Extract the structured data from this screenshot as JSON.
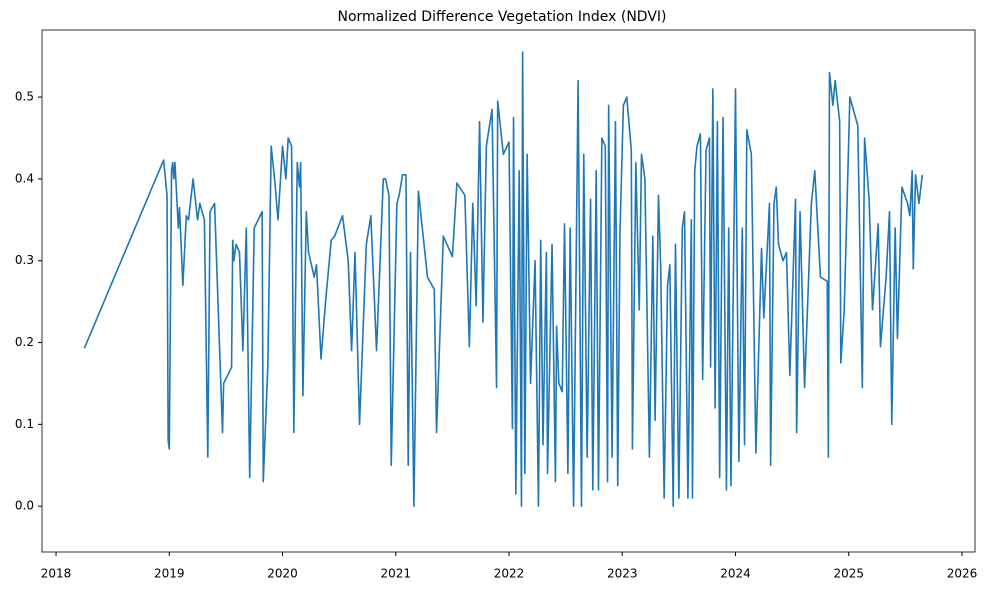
{
  "chart_data": {
    "type": "line",
    "title": "Normalized Difference Vegetation Index (NDVI)",
    "x": [
      2018.25,
      2018.95,
      2018.98,
      2018.99,
      2019.0,
      2019.02,
      2019.03,
      2019.04,
      2019.05,
      2019.08,
      2019.09,
      2019.12,
      2019.15,
      2019.17,
      2019.21,
      2019.25,
      2019.27,
      2019.31,
      2019.34,
      2019.36,
      2019.4,
      2019.47,
      2019.48,
      2019.55,
      2019.56,
      2019.57,
      2019.59,
      2019.62,
      2019.65,
      2019.68,
      2019.71,
      2019.75,
      2019.82,
      2019.83,
      2019.87,
      2019.9,
      2019.93,
      2019.96,
      2020.0,
      2020.03,
      2020.05,
      2020.08,
      2020.1,
      2020.13,
      2020.15,
      2020.16,
      2020.18,
      2020.21,
      2020.23,
      2020.28,
      2020.3,
      2020.34,
      2020.38,
      2020.43,
      2020.46,
      2020.53,
      2020.58,
      2020.61,
      2020.64,
      2020.68,
      2020.74,
      2020.78,
      2020.83,
      2020.89,
      2020.91,
      2020.94,
      2020.96,
      2021.01,
      2021.03,
      2021.06,
      2021.09,
      2021.11,
      2021.13,
      2021.16,
      2021.2,
      2021.28,
      2021.34,
      2021.36,
      2021.42,
      2021.5,
      2021.54,
      2021.61,
      2021.65,
      2021.68,
      2021.71,
      2021.74,
      2021.77,
      2021.8,
      2021.85,
      2021.89,
      2021.9,
      2021.95,
      2022.0,
      2022.03,
      2022.04,
      2022.06,
      2022.09,
      2022.11,
      2022.12,
      2022.14,
      2022.16,
      2022.19,
      2022.23,
      2022.26,
      2022.28,
      2022.3,
      2022.33,
      2022.34,
      2022.38,
      2022.41,
      2022.42,
      2022.44,
      2022.47,
      2022.49,
      2022.52,
      2022.54,
      2022.57,
      2022.61,
      2022.64,
      2022.66,
      2022.69,
      2022.72,
      2022.74,
      2022.77,
      2022.79,
      2022.82,
      2022.85,
      2022.87,
      2022.88,
      2022.91,
      2022.94,
      2022.96,
      2022.98,
      2023.01,
      2023.04,
      2023.08,
      2023.09,
      2023.12,
      2023.15,
      2023.17,
      2023.2,
      2023.24,
      2023.27,
      2023.29,
      2023.32,
      2023.34,
      2023.37,
      2023.4,
      2023.42,
      2023.45,
      2023.47,
      2023.5,
      2023.53,
      2023.55,
      2023.58,
      2023.61,
      2023.62,
      2023.64,
      2023.66,
      2023.69,
      2023.71,
      2023.74,
      2023.77,
      2023.78,
      2023.8,
      2023.82,
      2023.84,
      2023.86,
      2023.89,
      2023.92,
      2023.94,
      2023.96,
      2023.99,
      2024.0,
      2024.03,
      2024.06,
      2024.08,
      2024.1,
      2024.14,
      2024.18,
      2024.23,
      2024.25,
      2024.3,
      2024.31,
      2024.34,
      2024.36,
      2024.38,
      2024.42,
      2024.45,
      2024.48,
      2024.53,
      2024.54,
      2024.57,
      2024.61,
      2024.67,
      2024.7,
      2024.75,
      2024.81,
      2024.82,
      2024.83,
      2024.86,
      2024.88,
      2024.92,
      2024.93,
      2024.96,
      2025.01,
      2025.08,
      2025.12,
      2025.14,
      2025.18,
      2025.21,
      2025.26,
      2025.28,
      2025.33,
      2025.36,
      2025.38,
      2025.41,
      2025.43,
      2025.47,
      2025.52,
      2025.54,
      2025.56,
      2025.57,
      2025.59,
      2025.62,
      2025.65
    ],
    "series": [
      {
        "name": "NDVI",
        "color": "#1f77b4",
        "values": [
          0.193,
          0.423,
          0.38,
          0.08,
          0.07,
          0.41,
          0.42,
          0.4,
          0.42,
          0.34,
          0.365,
          0.27,
          0.355,
          0.35,
          0.4,
          0.35,
          0.37,
          0.35,
          0.06,
          0.36,
          0.37,
          0.09,
          0.15,
          0.17,
          0.325,
          0.3,
          0.32,
          0.31,
          0.19,
          0.34,
          0.035,
          0.34,
          0.36,
          0.03,
          0.17,
          0.44,
          0.4,
          0.35,
          0.44,
          0.4,
          0.45,
          0.44,
          0.09,
          0.42,
          0.39,
          0.42,
          0.135,
          0.36,
          0.31,
          0.28,
          0.295,
          0.18,
          0.25,
          0.325,
          0.33,
          0.355,
          0.3,
          0.19,
          0.31,
          0.1,
          0.32,
          0.355,
          0.19,
          0.4,
          0.4,
          0.38,
          0.05,
          0.37,
          0.38,
          0.405,
          0.405,
          0.05,
          0.31,
          0.0,
          0.385,
          0.28,
          0.265,
          0.09,
          0.33,
          0.305,
          0.395,
          0.38,
          0.195,
          0.37,
          0.245,
          0.47,
          0.225,
          0.44,
          0.485,
          0.145,
          0.495,
          0.43,
          0.445,
          0.095,
          0.475,
          0.015,
          0.41,
          0.0,
          0.555,
          0.04,
          0.43,
          0.15,
          0.3,
          0.0,
          0.325,
          0.075,
          0.31,
          0.04,
          0.32,
          0.03,
          0.22,
          0.15,
          0.14,
          0.345,
          0.04,
          0.34,
          0.0,
          0.52,
          0.0,
          0.43,
          0.06,
          0.375,
          0.02,
          0.41,
          0.02,
          0.45,
          0.44,
          0.03,
          0.49,
          0.06,
          0.47,
          0.025,
          0.335,
          0.49,
          0.5,
          0.435,
          0.07,
          0.42,
          0.24,
          0.43,
          0.4,
          0.06,
          0.33,
          0.105,
          0.38,
          0.29,
          0.01,
          0.27,
          0.295,
          0.0,
          0.32,
          0.01,
          0.34,
          0.36,
          0.01,
          0.35,
          0.01,
          0.41,
          0.44,
          0.455,
          0.155,
          0.435,
          0.45,
          0.17,
          0.51,
          0.12,
          0.47,
          0.035,
          0.475,
          0.02,
          0.34,
          0.025,
          0.38,
          0.51,
          0.055,
          0.34,
          0.075,
          0.46,
          0.43,
          0.065,
          0.315,
          0.23,
          0.37,
          0.05,
          0.37,
          0.39,
          0.32,
          0.3,
          0.31,
          0.16,
          0.375,
          0.09,
          0.36,
          0.145,
          0.37,
          0.41,
          0.28,
          0.275,
          0.06,
          0.53,
          0.49,
          0.52,
          0.47,
          0.175,
          0.24,
          0.5,
          0.465,
          0.145,
          0.45,
          0.375,
          0.24,
          0.345,
          0.195,
          0.28,
          0.36,
          0.1,
          0.34,
          0.205,
          0.39,
          0.37,
          0.355,
          0.41,
          0.29,
          0.405,
          0.37,
          0.405
        ]
      }
    ],
    "xlim": [
      2017.876,
      2026.115
    ],
    "xticks": [
      2018,
      2019,
      2020,
      2021,
      2022,
      2023,
      2024,
      2025,
      2026
    ],
    "ylim": [
      -0.056,
      0.582
    ],
    "yticks": [
      {
        "value": 0,
        "label": "0.0"
      },
      0.1,
      0.2,
      0.3,
      0.4,
      0.5
    ]
  }
}
